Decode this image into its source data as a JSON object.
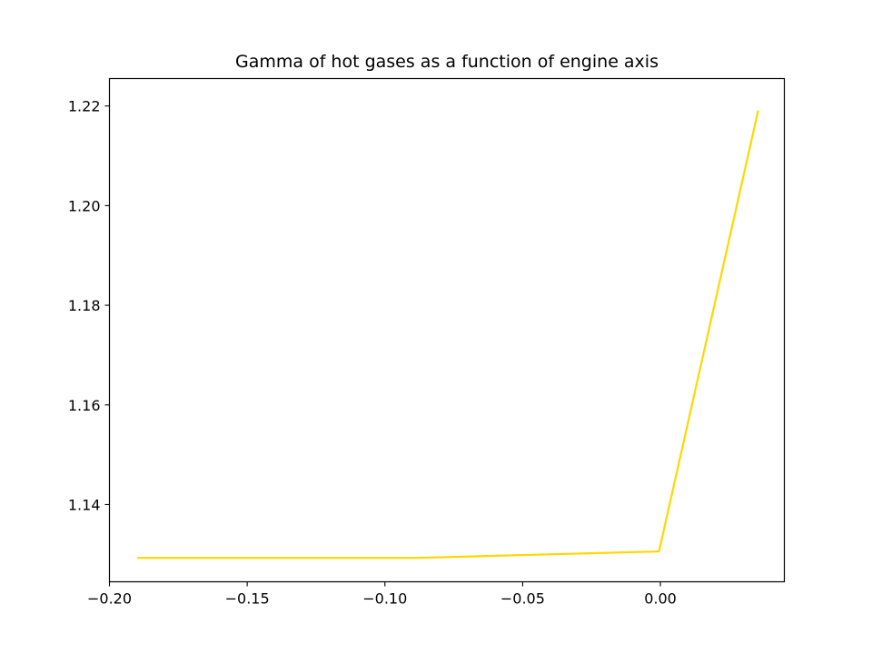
{
  "chart_data": {
    "type": "line",
    "title": "Gamma of hot gases as a function of engine axis",
    "xlabel": "",
    "ylabel": "",
    "xlim": [
      -0.2,
      0.045
    ],
    "ylim": [
      1.1245,
      1.2255
    ],
    "xticks": [
      -0.2,
      -0.15,
      -0.1,
      -0.05,
      0.0
    ],
    "xtick_labels": [
      "−0.20",
      "−0.15",
      "−0.10",
      "−0.05",
      "0.00"
    ],
    "yticks": [
      1.14,
      1.16,
      1.18,
      1.2,
      1.22
    ],
    "ytick_labels": [
      "1.14",
      "1.16",
      "1.18",
      "1.20",
      "1.22"
    ],
    "grid": false,
    "legend": "none",
    "series": [
      {
        "color": "#ffd700",
        "x": [
          -0.19,
          -0.088,
          -0.0005,
          0.0355
        ],
        "y": [
          1.1293,
          1.1293,
          1.1306,
          1.2191
        ]
      }
    ]
  }
}
